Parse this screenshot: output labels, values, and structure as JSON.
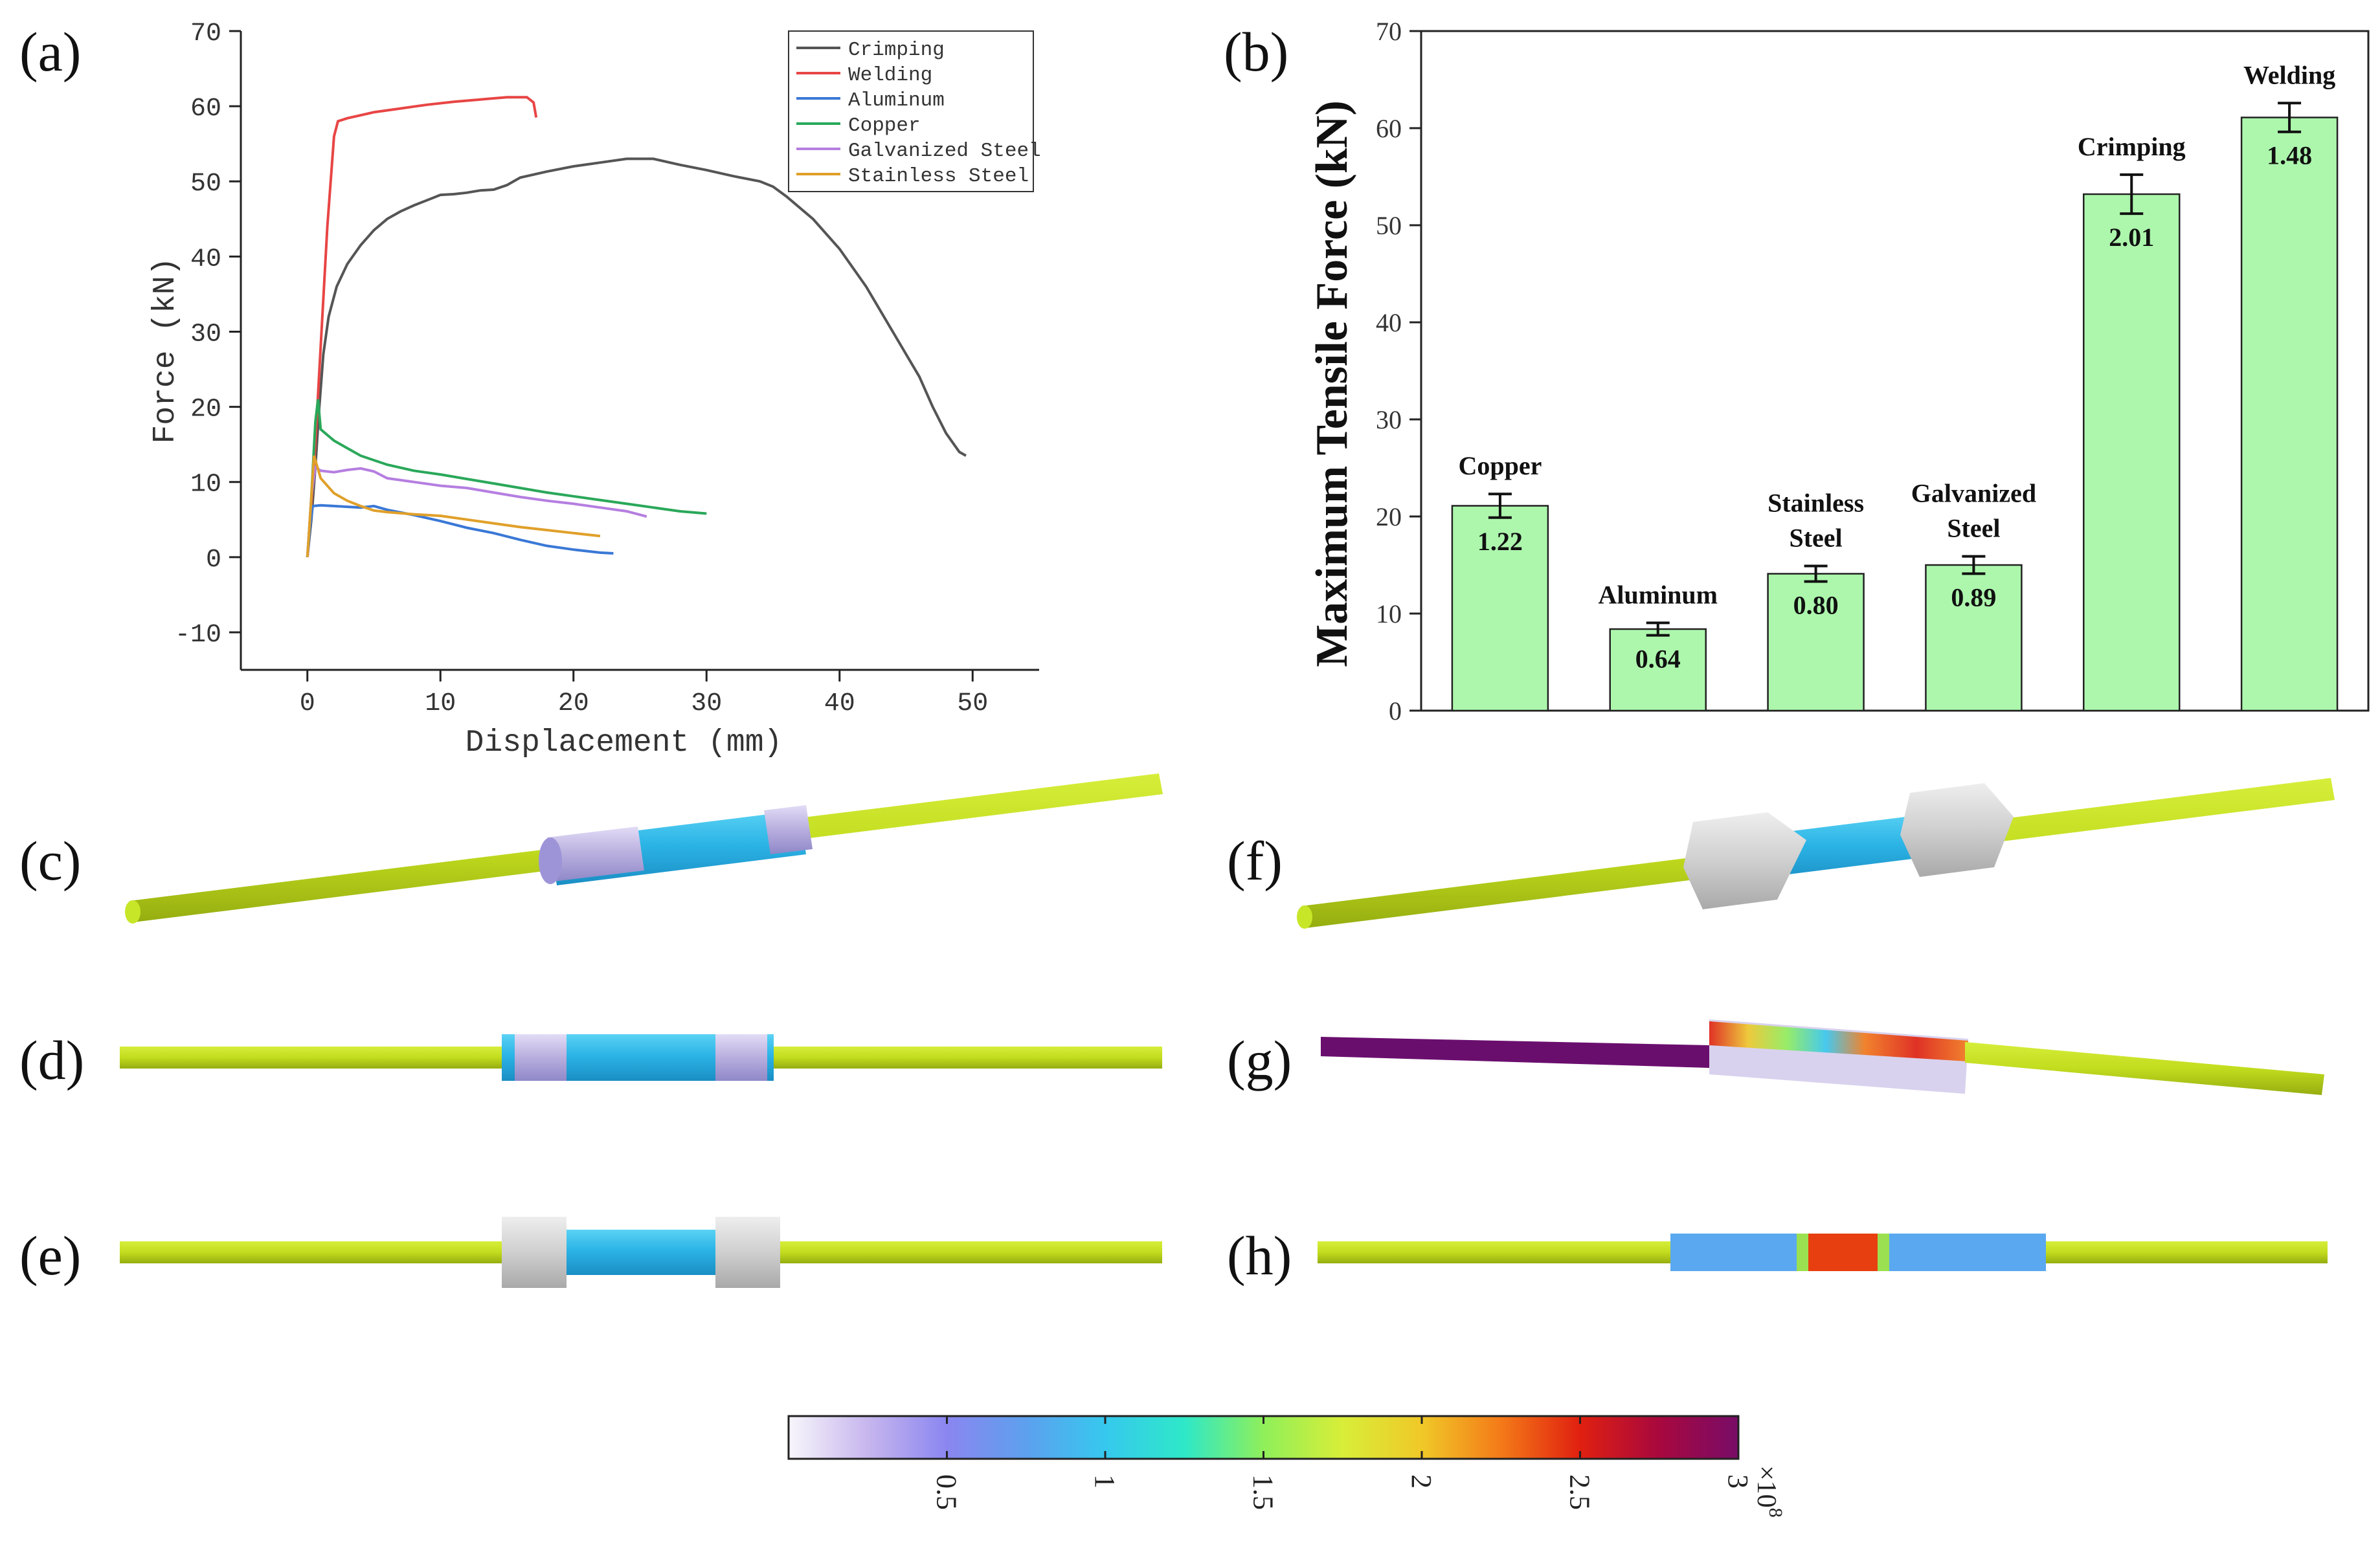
{
  "panels": {
    "a": "(a)",
    "b": "(b)",
    "c": "(c)",
    "d": "(d)",
    "e": "(e)",
    "f": "(f)",
    "g": "(g)",
    "h": "(h)"
  },
  "chart_data": [
    {
      "type": "line",
      "xlabel": "Displacement (mm)",
      "ylabel": "Force (kN)",
      "xlim": [
        -5,
        55
      ],
      "ylim": [
        -15,
        70
      ],
      "xticks": [
        0,
        10,
        20,
        30,
        40,
        50
      ],
      "yticks": [
        -10,
        0,
        10,
        20,
        30,
        40,
        50,
        60,
        70
      ],
      "legend_position": "top-right",
      "grid": false,
      "series": [
        {
          "name": "Crimping",
          "color": "#555555",
          "points": [
            [
              0,
              0
            ],
            [
              0.3,
              5
            ],
            [
              0.6,
              12
            ],
            [
              0.9,
              20
            ],
            [
              1.2,
              27
            ],
            [
              1.6,
              32
            ],
            [
              2.2,
              36
            ],
            [
              3,
              39
            ],
            [
              4,
              41.5
            ],
            [
              5,
              43.5
            ],
            [
              6,
              45
            ],
            [
              7,
              46
            ],
            [
              8,
              46.8
            ],
            [
              9,
              47.5
            ],
            [
              10,
              48.2
            ],
            [
              11,
              48.3
            ],
            [
              12,
              48.5
            ],
            [
              13,
              48.8
            ],
            [
              14,
              48.9
            ],
            [
              15,
              49.5
            ],
            [
              16,
              50.5
            ],
            [
              18,
              51.3
            ],
            [
              20,
              52
            ],
            [
              22,
              52.5
            ],
            [
              24,
              53
            ],
            [
              26,
              53
            ],
            [
              28,
              52.2
            ],
            [
              30,
              51.5
            ],
            [
              32,
              50.7
            ],
            [
              34,
              50
            ],
            [
              35,
              49.3
            ],
            [
              36,
              48
            ],
            [
              38,
              45
            ],
            [
              40,
              41
            ],
            [
              42,
              36
            ],
            [
              44,
              30
            ],
            [
              46,
              24
            ],
            [
              47,
              20
            ],
            [
              48,
              16.5
            ],
            [
              49,
              14
            ],
            [
              49.5,
              13.5
            ]
          ]
        },
        {
          "name": "Welding",
          "color": "#e84545",
          "points": [
            [
              0,
              0
            ],
            [
              0.5,
              12
            ],
            [
              1,
              28
            ],
            [
              1.5,
              44
            ],
            [
              2,
              56
            ],
            [
              2.3,
              58
            ],
            [
              3,
              58.4
            ],
            [
              4,
              58.8
            ],
            [
              5,
              59.2
            ],
            [
              7,
              59.7
            ],
            [
              9,
              60.2
            ],
            [
              11,
              60.6
            ],
            [
              13,
              60.9
            ],
            [
              15,
              61.2
            ],
            [
              16.5,
              61.2
            ],
            [
              17,
              60.5
            ],
            [
              17.2,
              58.5
            ]
          ]
        },
        {
          "name": "Aluminum",
          "color": "#3a78d6",
          "points": [
            [
              0,
              0
            ],
            [
              0.2,
              4
            ],
            [
              0.4,
              6.8
            ],
            [
              1,
              6.9
            ],
            [
              2,
              6.8
            ],
            [
              4,
              6.6
            ],
            [
              5,
              6.8
            ],
            [
              6,
              6.3
            ],
            [
              8,
              5.6
            ],
            [
              10,
              4.8
            ],
            [
              12,
              3.9
            ],
            [
              14,
              3.2
            ],
            [
              16,
              2.3
            ],
            [
              18,
              1.5
            ],
            [
              20,
              1.0
            ],
            [
              22,
              0.6
            ],
            [
              23,
              0.5
            ]
          ]
        },
        {
          "name": "Copper",
          "color": "#2aa85a",
          "points": [
            [
              0,
              0
            ],
            [
              0.3,
              8
            ],
            [
              0.6,
              18
            ],
            [
              0.8,
              21
            ],
            [
              1,
              17
            ],
            [
              2,
              15.5
            ],
            [
              3,
              14.5
            ],
            [
              4,
              13.5
            ],
            [
              6,
              12.3
            ],
            [
              8,
              11.5
            ],
            [
              10,
              11
            ],
            [
              12,
              10.4
            ],
            [
              14,
              9.8
            ],
            [
              16,
              9.2
            ],
            [
              18,
              8.6
            ],
            [
              20,
              8.1
            ],
            [
              22,
              7.6
            ],
            [
              24,
              7.1
            ],
            [
              26,
              6.6
            ],
            [
              28,
              6.1
            ],
            [
              30,
              5.8
            ]
          ]
        },
        {
          "name": "Galvanized Steel",
          "color": "#b57ee0",
          "points": [
            [
              0,
              0
            ],
            [
              0.3,
              8
            ],
            [
              0.6,
              12
            ],
            [
              1,
              11.5
            ],
            [
              2,
              11.3
            ],
            [
              3,
              11.6
            ],
            [
              4,
              11.8
            ],
            [
              5,
              11.4
            ],
            [
              6,
              10.5
            ],
            [
              8,
              10
            ],
            [
              10,
              9.5
            ],
            [
              12,
              9.2
            ],
            [
              14,
              8.6
            ],
            [
              16,
              8
            ],
            [
              18,
              7.5
            ],
            [
              20,
              7.1
            ],
            [
              22,
              6.6
            ],
            [
              24,
              6.1
            ],
            [
              25.5,
              5.4
            ]
          ]
        },
        {
          "name": "Stainless Steel",
          "color": "#e0a02a",
          "points": [
            [
              0,
              0
            ],
            [
              0.3,
              8
            ],
            [
              0.5,
              13.5
            ],
            [
              1,
              10.5
            ],
            [
              2,
              8.5
            ],
            [
              3,
              7.5
            ],
            [
              4,
              6.8
            ],
            [
              5,
              6.2
            ],
            [
              6,
              6
            ],
            [
              8,
              5.7
            ],
            [
              10,
              5.5
            ],
            [
              12,
              5
            ],
            [
              14,
              4.5
            ],
            [
              16,
              4
            ],
            [
              18,
              3.6
            ],
            [
              20,
              3.2
            ],
            [
              22,
              2.8
            ]
          ]
        }
      ]
    },
    {
      "type": "bar",
      "ylabel": "Maximum Tensile Force (kN)",
      "ylim": [
        0,
        70
      ],
      "yticks": [
        0,
        10,
        20,
        30,
        40,
        50,
        60,
        70
      ],
      "bar_color": "#adf7ad",
      "categories": [
        "Copper",
        "Aluminum",
        "Stainless Steel",
        "Galvanized Steel",
        "Crimping",
        "Welding"
      ],
      "category_lines": [
        [
          "Copper"
        ],
        [
          "Aluminum"
        ],
        [
          "Stainless",
          "Steel"
        ],
        [
          "Galvanized",
          "Steel"
        ],
        [
          "Crimping"
        ],
        [
          "Welding"
        ]
      ],
      "values": [
        21.1,
        8.4,
        14.1,
        15.0,
        53.2,
        61.1
      ],
      "errors": [
        1.22,
        0.64,
        0.8,
        0.89,
        2.01,
        1.48
      ],
      "error_labels": [
        "1.22",
        "0.64",
        "0.80",
        "0.89",
        "2.01",
        "1.48"
      ]
    }
  ],
  "colorbar": {
    "ticks": [
      "0.5",
      "1",
      "1.5",
      "2",
      "2.5",
      "3"
    ],
    "tick_values": [
      0.5,
      1,
      1.5,
      2,
      2.5,
      3
    ],
    "range": [
      0,
      3
    ],
    "multiplier": "×10",
    "exponent": "8",
    "colors": [
      "#f8f6fb",
      "#c7b6ee",
      "#8a86f0",
      "#5da0ee",
      "#36c8ee",
      "#2ee8c8",
      "#8fef5a",
      "#d8ee38",
      "#f0c828",
      "#f47a18",
      "#e02010",
      "#a8083e",
      "#780c68"
    ]
  }
}
